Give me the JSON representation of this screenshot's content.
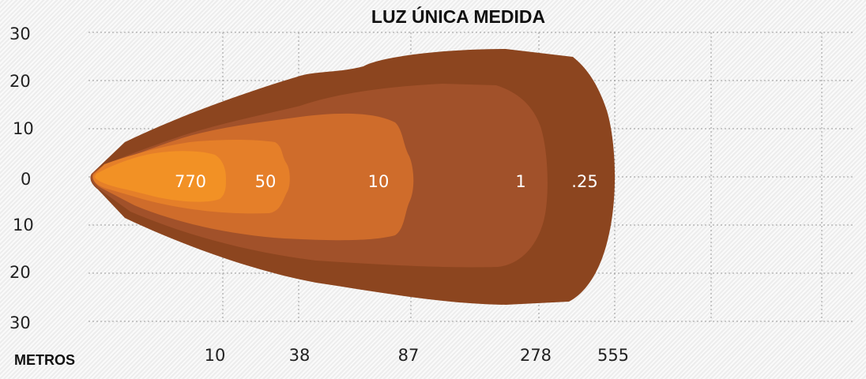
{
  "chart_data": {
    "type": "area",
    "title": "LUZ ÚNICA MEDIDA",
    "xlabel": "METROS",
    "ylabel": "",
    "y_tick_labels": [
      "30",
      "20",
      "10",
      "0",
      "10",
      "20",
      "30"
    ],
    "y_tick_values": [
      30,
      20,
      10,
      0,
      -10,
      -20,
      -30
    ],
    "x_tick_labels": [
      "10",
      "38",
      "87",
      "278",
      "555"
    ],
    "grid": true,
    "zones": [
      {
        "label": ".25",
        "color": "#8c451f",
        "reach": 555,
        "half_width": 26
      },
      {
        "label": "1",
        "color": "#a1512a",
        "reach": 278,
        "half_width": 19
      },
      {
        "label": "10",
        "color": "#cf6c2b",
        "reach": 87,
        "half_width": 14
      },
      {
        "label": "50",
        "color": "#e57f29",
        "reach": 38,
        "half_width": 8
      },
      {
        "label": "770",
        "color": "#f29125",
        "reach": 10,
        "half_width": 5
      }
    ]
  }
}
